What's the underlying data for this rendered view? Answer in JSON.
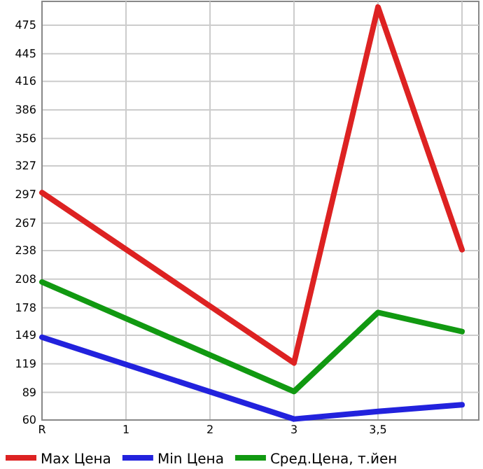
{
  "chart_data": {
    "type": "line",
    "categories": [
      "R",
      "1",
      "2",
      "3",
      "3,5",
      null
    ],
    "ylim": [
      60,
      500
    ],
    "yticks": [
      60,
      89,
      119,
      149,
      178,
      208,
      238,
      267,
      297,
      327,
      356,
      386,
      416,
      445,
      475
    ],
    "grid": true,
    "legend": "bottom",
    "line_style": "solid",
    "marker": "none",
    "series": [
      {
        "name": "Max Цена",
        "color": "#dd2222",
        "values": [
          299,
          null,
          null,
          120,
          494,
          239
        ]
      },
      {
        "name": "Min Цена",
        "color": "#2222dd",
        "values": [
          147,
          null,
          null,
          61,
          69,
          76
        ]
      },
      {
        "name": "Сред.Цена, т.йен",
        "color": "#119911",
        "values": [
          205,
          null,
          null,
          90,
          173,
          153
        ]
      }
    ]
  }
}
